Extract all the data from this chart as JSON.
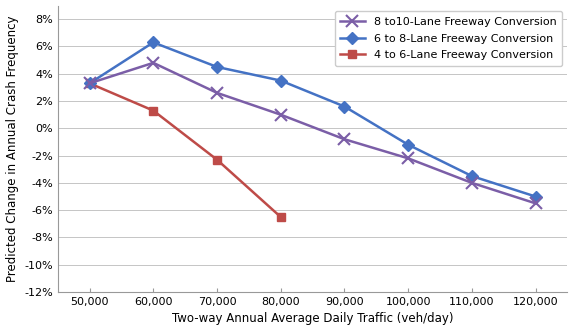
{
  "title": "",
  "xlabel": "Two-way Annual Average Daily Traffic (veh/day)",
  "ylabel": "Predicted Change in Annual Crash Frequency",
  "xlim": [
    45000,
    125000
  ],
  "ylim": [
    -0.12,
    0.09
  ],
  "xticks": [
    50000,
    60000,
    70000,
    80000,
    90000,
    100000,
    110000,
    120000
  ],
  "yticks": [
    -0.12,
    -0.1,
    -0.08,
    -0.06,
    -0.04,
    -0.02,
    0.0,
    0.02,
    0.04,
    0.06,
    0.08
  ],
  "series": [
    {
      "label": "4 to 6-Lane Freeway Conversion",
      "x": [
        50000,
        60000,
        70000,
        80000
      ],
      "y": [
        0.033,
        0.013,
        -0.023,
        -0.065
      ],
      "color": "#BE4B48",
      "marker": "s",
      "linewidth": 1.8,
      "markersize": 6
    },
    {
      "label": "6 to 8-Lane Freeway Conversion",
      "x": [
        50000,
        60000,
        70000,
        80000,
        90000,
        100000,
        110000,
        120000
      ],
      "y": [
        0.033,
        0.063,
        0.045,
        0.035,
        0.016,
        -0.012,
        -0.035,
        -0.05
      ],
      "color": "#4472C4",
      "marker": "D",
      "linewidth": 1.8,
      "markersize": 6
    },
    {
      "label": "8 to10-Lane Freeway Conversion",
      "x": [
        50000,
        60000,
        70000,
        80000,
        90000,
        100000,
        110000,
        120000
      ],
      "y": [
        0.033,
        0.048,
        0.026,
        0.01,
        -0.008,
        -0.022,
        -0.04,
        -0.055
      ],
      "color": "#7B5EA7",
      "marker": "x",
      "linewidth": 1.8,
      "markersize": 8,
      "markeredgewidth": 1.5
    }
  ],
  "legend_order": [
    2,
    1,
    0
  ],
  "background_color": "#FFFFFF",
  "grid_color": "#BBBBBB"
}
